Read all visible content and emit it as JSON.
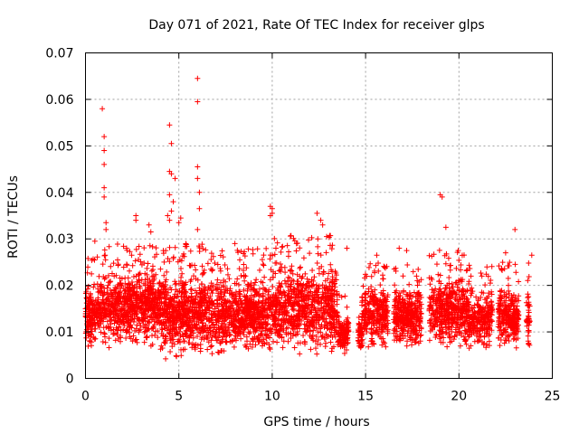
{
  "chart_data": {
    "type": "scatter",
    "title": "Day 071 of 2021, Rate Of TEC Index for receiver glps",
    "xlabel": "GPS time / hours",
    "ylabel": "ROTI / TECUs",
    "xlim": [
      0,
      25
    ],
    "ylim": [
      0,
      0.07
    ],
    "xticks": [
      0,
      5,
      10,
      15,
      20,
      25
    ],
    "xtick_labels": [
      "0",
      "5",
      "10",
      "15",
      "20",
      "25"
    ],
    "yticks": [
      0,
      0.01,
      0.02,
      0.03,
      0.04,
      0.05,
      0.06,
      0.07
    ],
    "ytick_labels": [
      "0",
      "0.01",
      "0.02",
      "0.03",
      "0.04",
      "0.05",
      "0.06",
      "0.07"
    ],
    "grid": true,
    "marker": "+",
    "series": [
      {
        "name": "ROTI",
        "color": "#ff0000",
        "points": [
          [
            0.9,
            0.058
          ],
          [
            1.0,
            0.052
          ],
          [
            1.0,
            0.049
          ],
          [
            1.0,
            0.046
          ],
          [
            1.0,
            0.041
          ],
          [
            1.0,
            0.039
          ],
          [
            1.1,
            0.0335
          ],
          [
            1.1,
            0.032
          ],
          [
            2.7,
            0.035
          ],
          [
            2.7,
            0.034
          ],
          [
            3.4,
            0.033
          ],
          [
            3.5,
            0.0315
          ],
          [
            4.5,
            0.0545
          ],
          [
            4.6,
            0.0505
          ],
          [
            4.5,
            0.0445
          ],
          [
            4.6,
            0.044
          ],
          [
            4.8,
            0.043
          ],
          [
            4.5,
            0.0395
          ],
          [
            4.7,
            0.038
          ],
          [
            4.6,
            0.036
          ],
          [
            4.4,
            0.035
          ],
          [
            4.5,
            0.034
          ],
          [
            5.1,
            0.0345
          ],
          [
            5.0,
            0.0335
          ],
          [
            6.0,
            0.0645
          ],
          [
            6.0,
            0.0595
          ],
          [
            6.0,
            0.0455
          ],
          [
            6.0,
            0.043
          ],
          [
            6.1,
            0.04
          ],
          [
            6.1,
            0.0365
          ],
          [
            6.0,
            0.032
          ],
          [
            9.9,
            0.037
          ],
          [
            10.0,
            0.0365
          ],
          [
            10.0,
            0.0355
          ],
          [
            9.9,
            0.035
          ],
          [
            12.4,
            0.0355
          ],
          [
            12.6,
            0.034
          ],
          [
            12.7,
            0.033
          ],
          [
            19.0,
            0.0395
          ],
          [
            19.1,
            0.039
          ],
          [
            19.3,
            0.0325
          ],
          [
            23.0,
            0.032
          ],
          [
            16.8,
            0.028
          ],
          [
            17.2,
            0.0275
          ],
          [
            22.5,
            0.027
          ],
          [
            23.9,
            0.0265
          ],
          [
            0.5,
            0.0295
          ],
          [
            2.2,
            0.028
          ],
          [
            8.0,
            0.029
          ],
          [
            11.3,
            0.029
          ],
          [
            14.0,
            0.028
          ],
          [
            15.6,
            0.0265
          ]
        ]
      }
    ]
  }
}
